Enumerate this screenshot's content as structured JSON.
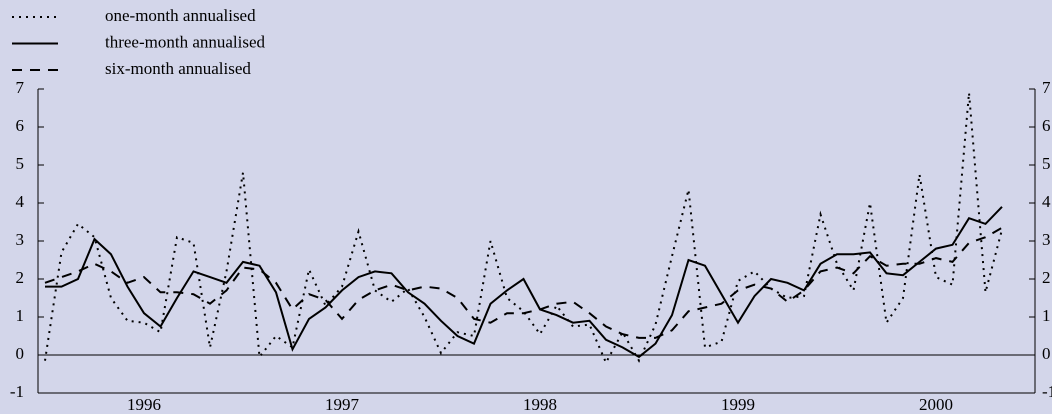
{
  "chart_data": {
    "type": "line",
    "categories": [
      null,
      null,
      null,
      null,
      null,
      null,
      "1996",
      null,
      null,
      null,
      null,
      null,
      null,
      null,
      null,
      null,
      null,
      null,
      "1997",
      null,
      null,
      null,
      null,
      null,
      null,
      null,
      null,
      null,
      null,
      null,
      "1998",
      null,
      null,
      null,
      null,
      null,
      null,
      null,
      null,
      null,
      null,
      null,
      "1999",
      null,
      null,
      null,
      null,
      null,
      null,
      null,
      null,
      null,
      null,
      null,
      "2000",
      null,
      null,
      null,
      null
    ],
    "series": [
      {
        "name": "one-month annualised",
        "color": "#000000",
        "style": "dotted",
        "values": [
          -0.15,
          2.7,
          3.45,
          3.1,
          1.5,
          0.9,
          0.85,
          0.6,
          3.1,
          2.95,
          0.2,
          2.2,
          4.8,
          -0.05,
          0.5,
          0.2,
          2.25,
          1.3,
          1.8,
          3.25,
          1.7,
          1.4,
          1.75,
          1.0,
          0.05,
          0.6,
          0.5,
          3.0,
          1.5,
          1.15,
          0.55,
          1.3,
          0.75,
          0.8,
          -0.2,
          0.6,
          -0.15,
          0.8,
          2.6,
          4.35,
          0.2,
          0.35,
          1.95,
          2.2,
          1.75,
          1.5,
          1.55,
          3.7,
          2.4,
          1.7,
          4.0,
          0.85,
          1.5,
          4.75,
          2.05,
          1.85,
          6.9,
          1.65,
          3.3
        ]
      },
      {
        "name": "three-month annualised",
        "color": "#000000",
        "style": "solid",
        "values": [
          1.8,
          1.8,
          2.0,
          3.05,
          2.65,
          1.8,
          1.1,
          0.75,
          1.5,
          2.2,
          2.05,
          1.9,
          2.45,
          2.35,
          1.65,
          0.15,
          0.95,
          1.25,
          1.7,
          2.05,
          2.2,
          2.15,
          1.65,
          1.35,
          0.9,
          0.5,
          0.3,
          1.35,
          1.7,
          2.0,
          1.2,
          1.05,
          0.85,
          0.9,
          0.4,
          0.2,
          -0.05,
          0.3,
          1.05,
          2.5,
          2.35,
          1.6,
          0.85,
          1.55,
          2.0,
          1.9,
          1.7,
          2.4,
          2.65,
          2.65,
          2.7,
          2.15,
          2.1,
          2.45,
          2.8,
          2.9,
          3.6,
          3.45,
          3.9
        ]
      },
      {
        "name": "six-month annualised",
        "color": "#000000",
        "style": "dashed",
        "values": [
          1.9,
          2.05,
          2.2,
          2.4,
          2.2,
          1.9,
          2.05,
          1.65,
          1.65,
          1.6,
          1.35,
          1.7,
          2.3,
          2.25,
          1.9,
          1.2,
          1.6,
          1.45,
          0.95,
          1.45,
          1.7,
          1.85,
          1.7,
          1.8,
          1.75,
          1.5,
          0.95,
          0.85,
          1.1,
          1.1,
          1.2,
          1.35,
          1.4,
          1.1,
          0.75,
          0.55,
          0.45,
          0.45,
          0.65,
          1.15,
          1.25,
          1.35,
          1.7,
          1.85,
          1.75,
          1.4,
          1.7,
          2.2,
          2.3,
          2.15,
          2.6,
          2.35,
          2.4,
          2.4,
          2.55,
          2.45,
          2.95,
          3.1,
          3.35
        ]
      }
    ],
    "ylim": [
      -1,
      7
    ],
    "yticks": [
      -1,
      0,
      1,
      2,
      3,
      4,
      5,
      6,
      7
    ],
    "y2lim": [
      -1,
      7
    ],
    "y2ticks": [
      -1,
      0,
      1,
      2,
      3,
      4,
      5,
      6,
      7
    ]
  }
}
